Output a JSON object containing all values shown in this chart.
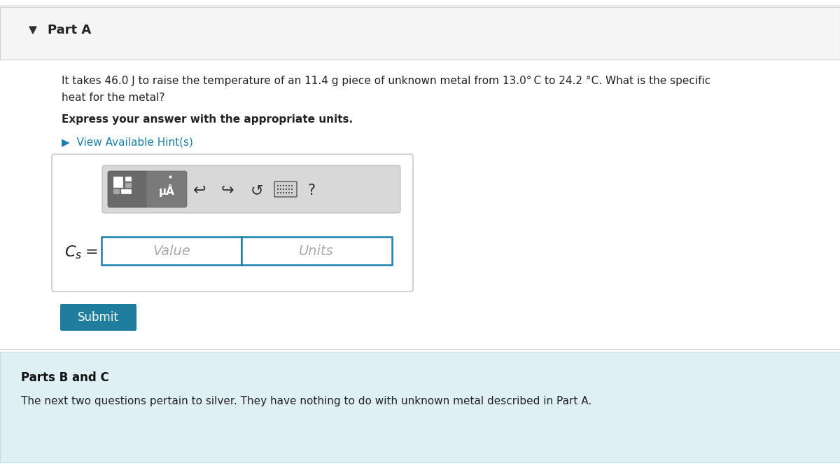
{
  "bg_color": "#ffffff",
  "part_a_label": "Part A",
  "body_text_line1": "It takes 46.0 J to raise the temperature of an 11.4 g piece of unknown metal from 13.0° C to 24.2 °C. What is the specific",
  "body_text_line2": "heat for the metal?",
  "bold_text": "Express your answer with the appropriate units.",
  "hint_text": "▶  View Available Hint(s)",
  "hint_color": "#1a7fa8",
  "cs_label": "$C_s$",
  "value_placeholder": "Value",
  "units_placeholder": "Units",
  "submit_text": "Submit",
  "submit_bg": "#1f7d9e",
  "submit_text_color": "#ffffff",
  "parts_bc_bg": "#dff0f5",
  "parts_bc_label": "Parts B and C",
  "parts_bc_text": "The next two questions pertain to silver. They have nothing to do with unknown metal described in Part A.",
  "input_border_color": "#1a7fa8",
  "outer_box_border": "#c0c0c0",
  "toolbar_bg": "#d8d8d8",
  "part_a_bg": "#f5f5f5",
  "part_a_border": "#d0d0d0",
  "separator_color": "#cccccc",
  "parts_bc_border": "#c5dde5"
}
